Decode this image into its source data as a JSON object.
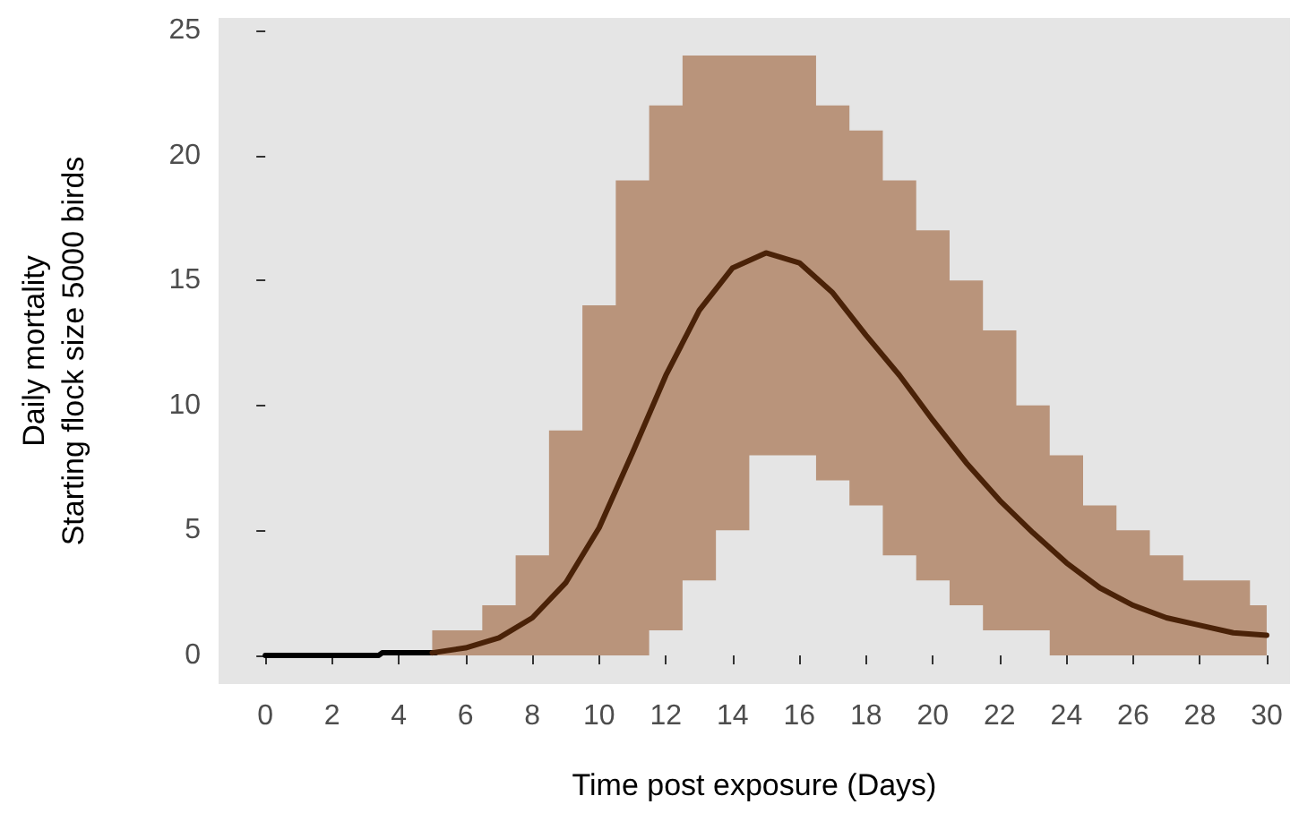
{
  "chart_data": {
    "type": "line",
    "xlabel": "Time post exposure (Days)",
    "ylabel": "Daily mortality\nStarting flock size 5000 birds",
    "xlim": [
      -1.4,
      30.7
    ],
    "ylim": [
      -1.15,
      25.5
    ],
    "xticks": [
      0,
      2,
      4,
      6,
      8,
      10,
      12,
      14,
      16,
      18,
      20,
      22,
      24,
      26,
      28,
      30
    ],
    "yticks": [
      0,
      5,
      10,
      15,
      20,
      25
    ],
    "grid": false,
    "marker": "none",
    "line_style": "solid",
    "series": [
      {
        "color": "#000000",
        "x": [
          0,
          3.4,
          3.5,
          5.1
        ],
        "values": [
          0,
          0,
          0.1,
          0.1
        ]
      },
      {
        "color": "#4a2208",
        "x": [
          5,
          6,
          7,
          8,
          9,
          10,
          11,
          12,
          13,
          14,
          15,
          16,
          17,
          18,
          19,
          20,
          21,
          22,
          23,
          24,
          25,
          26,
          27,
          28,
          29,
          30
        ],
        "values": [
          0.1,
          0.3,
          0.7,
          1.5,
          2.9,
          5.1,
          8.1,
          11.2,
          13.8,
          15.5,
          16.1,
          15.7,
          14.5,
          12.8,
          11.2,
          9.4,
          7.7,
          6.2,
          4.9,
          3.7,
          2.7,
          2.0,
          1.5,
          1.2,
          0.9,
          0.8
        ],
        "lower": [
          0,
          0,
          0,
          0,
          0,
          0,
          0,
          1,
          3,
          5,
          8,
          8,
          7,
          6,
          4,
          3,
          2,
          1,
          1,
          0,
          0,
          0,
          0,
          0,
          0,
          0
        ],
        "upper": [
          1,
          1,
          2,
          4,
          9,
          14,
          19,
          22,
          24,
          24,
          24,
          24,
          22,
          21,
          19,
          17,
          15,
          13,
          10,
          8,
          6,
          5,
          4,
          3,
          3,
          2
        ]
      }
    ]
  }
}
